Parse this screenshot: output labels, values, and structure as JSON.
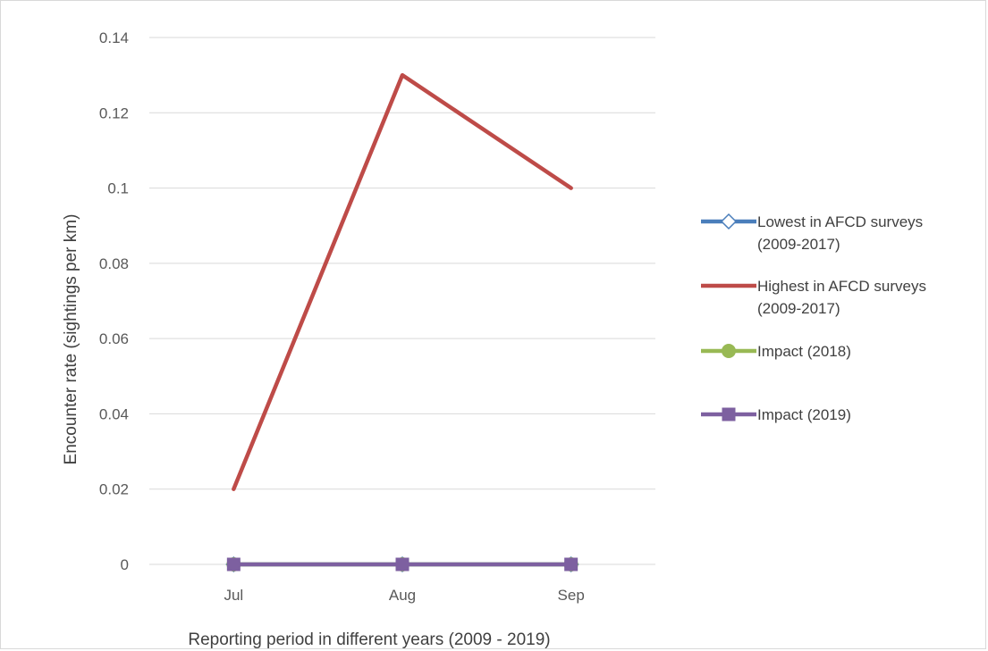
{
  "chart_data": {
    "type": "line",
    "title": "",
    "xlabel": "Reporting period in different years (2009 - 2019)",
    "ylabel": "Encounter rate (sightings per km)",
    "categories": [
      "Jul",
      "Aug",
      "Sep"
    ],
    "ylim": [
      0,
      0.14
    ],
    "yticks": [
      0,
      0.02,
      0.04,
      0.06,
      0.08,
      0.1,
      0.12,
      0.14
    ],
    "ytick_labels": [
      "0",
      "0.02",
      "0.04",
      "0.06",
      "0.08",
      "0.1",
      "0.12",
      "0.14"
    ],
    "grid": true,
    "legend_position": "right",
    "series": [
      {
        "name": "Lowest in AFCD surveys (2009-2017)",
        "legend_lines": [
          "Lowest in AFCD surveys",
          "(2009-2017)"
        ],
        "values": [
          0,
          0,
          0
        ],
        "color": "#4a7ebb",
        "marker": "diamond-open"
      },
      {
        "name": "Highest in AFCD surveys (2009-2017)",
        "legend_lines": [
          "Highest in AFCD surveys",
          "(2009-2017)"
        ],
        "values": [
          0.02,
          0.13,
          0.1
        ],
        "color": "#be4b48",
        "marker": "none"
      },
      {
        "name": "Impact (2018)",
        "legend_lines": [
          "Impact (2018)"
        ],
        "values": [
          0,
          0,
          0
        ],
        "color": "#98b954",
        "marker": "circle"
      },
      {
        "name": "Impact (2019)",
        "legend_lines": [
          "Impact (2019)"
        ],
        "values": [
          0,
          0,
          0
        ],
        "color": "#7d60a0",
        "marker": "square"
      }
    ]
  }
}
